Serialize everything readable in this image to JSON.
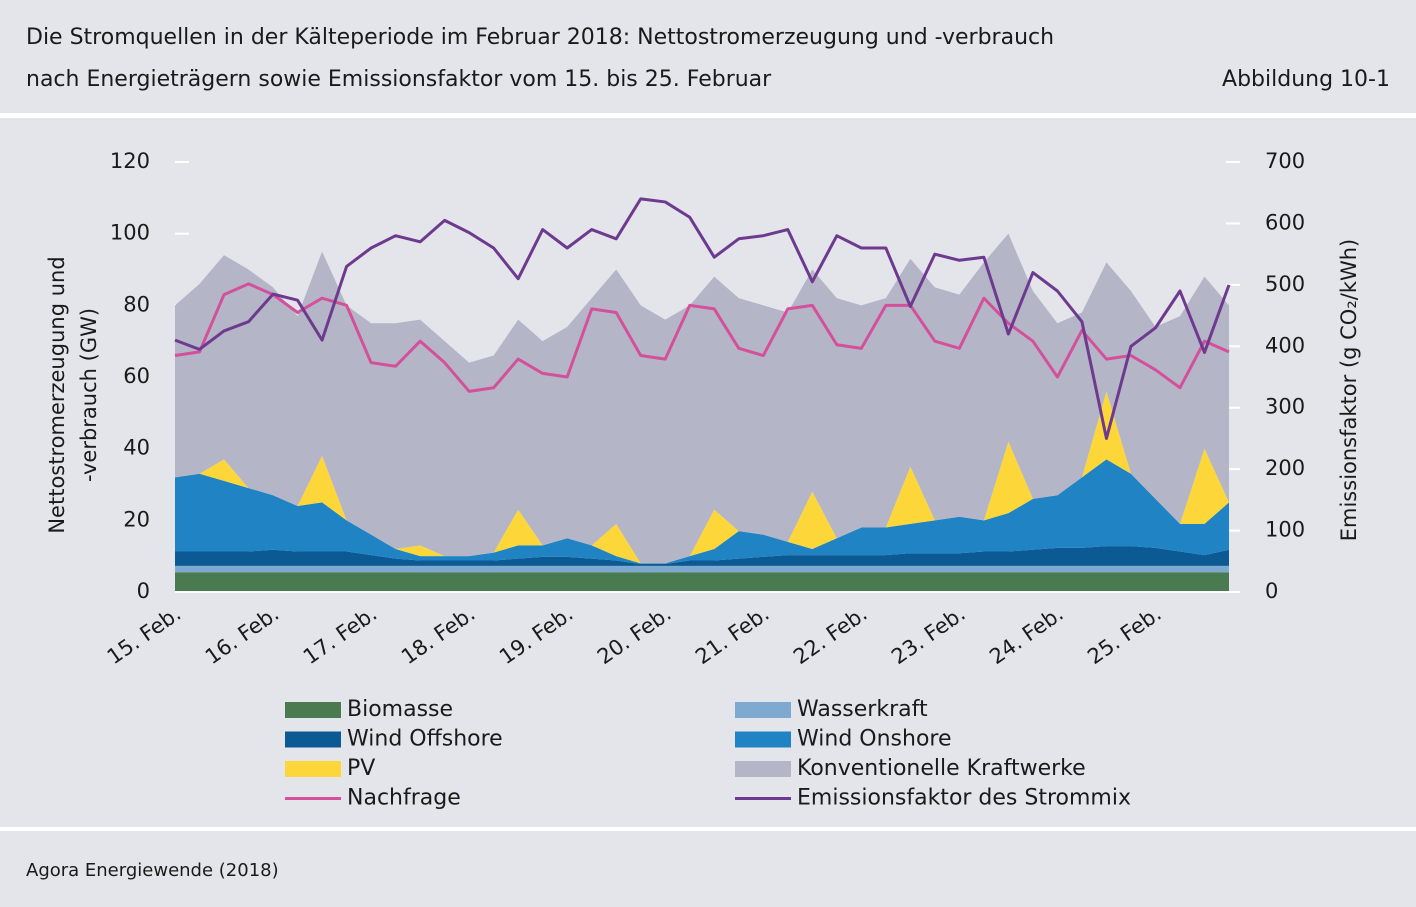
{
  "chart_data": {
    "type": "stacked_area",
    "title": "Die Stromquellen in der Kälteperiode im Februar 2018: Nettostromerzeugung und -verbrauch",
    "subtitle": "nach Energieträgern sowie Emissionsfaktor vom 15. bis 25. Februar",
    "figure_label": "Abbildung 10-1",
    "source": "Agora Energiewende (2018)",
    "ylabel": [
      "Nettostromerzeugung und",
      "-verbrauch (GW)"
    ],
    "y2label": "Emissionsfaktor (g CO₂/kWh)",
    "categories": [
      "15. Feb.",
      null,
      null,
      null,
      "16. Feb.",
      null,
      null,
      null,
      "17. Feb.",
      null,
      null,
      null,
      "18. Feb.",
      null,
      null,
      null,
      "19. Feb.",
      null,
      null,
      null,
      "20. Feb.",
      null,
      null,
      null,
      "21. Feb.",
      null,
      null,
      null,
      "22. Feb.",
      null,
      null,
      null,
      "23. Feb.",
      null,
      null,
      null,
      "24. Feb.",
      null,
      null,
      null,
      "25. Feb.",
      null,
      null,
      null
    ],
    "ylim": [
      0,
      120
    ],
    "yticks": [
      0,
      20,
      40,
      60,
      80,
      100,
      120
    ],
    "y2lim": [
      0,
      700
    ],
    "y2ticks": [
      0,
      100,
      200,
      300,
      400,
      500,
      600,
      700
    ],
    "series": [
      {
        "name": "Biomasse",
        "color": "#4a7a50",
        "values": [
          5.5,
          5.5,
          5.5,
          5.5,
          5.5,
          5.5,
          5.5,
          5.5,
          5.5,
          5.5,
          5.5,
          5.5,
          5.5,
          5.5,
          5.5,
          5.5,
          5.5,
          5.5,
          5.5,
          5.5,
          5.5,
          5.5,
          5.5,
          5.5,
          5.5,
          5.5,
          5.5,
          5.5,
          5.5,
          5.5,
          5.5,
          5.5,
          5.5,
          5.5,
          5.5,
          5.5,
          5.5,
          5.5,
          5.5,
          5.5,
          5.5,
          5.5,
          5.5,
          5.5
        ]
      },
      {
        "name": "Wasserkraft",
        "color": "#7eaad2",
        "values": [
          1.8,
          1.8,
          1.8,
          1.8,
          1.8,
          1.8,
          1.8,
          1.8,
          1.8,
          1.8,
          1.8,
          1.8,
          1.8,
          1.8,
          1.8,
          1.8,
          1.8,
          1.8,
          1.8,
          1.8,
          1.8,
          1.8,
          1.8,
          1.8,
          1.8,
          1.8,
          1.8,
          1.8,
          1.8,
          1.8,
          1.8,
          1.8,
          1.8,
          1.8,
          1.8,
          1.8,
          1.8,
          1.8,
          1.8,
          1.8,
          1.8,
          1.8,
          1.8,
          1.8
        ]
      },
      {
        "name": "Wind Offshore",
        "color": "#0c5a94",
        "values": [
          4,
          4,
          4,
          4,
          4.5,
          4,
          4,
          4,
          3,
          2,
          1.5,
          1.5,
          1.5,
          1.5,
          2,
          2.5,
          2.5,
          2,
          1.5,
          0.5,
          0.5,
          1.5,
          1.5,
          2,
          2.5,
          3,
          3,
          3,
          3,
          3,
          3.5,
          3.5,
          3.5,
          4,
          4,
          4.5,
          5,
          5,
          5.5,
          5.5,
          5,
          4,
          3,
          4.5
        ]
      },
      {
        "name": "Wind Onshore",
        "color": "#2083c3",
        "values": [
          20.7,
          21.7,
          19.7,
          17.7,
          15.2,
          12.7,
          13.7,
          8.7,
          5.7,
          2.7,
          1.2,
          1.2,
          1.2,
          2.2,
          3.7,
          3.2,
          5.2,
          3.7,
          1.2,
          0.2,
          0.2,
          1.2,
          3.2,
          7.7,
          6.2,
          3.7,
          1.7,
          4.7,
          7.7,
          7.7,
          8.2,
          9.2,
          10.2,
          8.7,
          10.7,
          14.2,
          14.7,
          19.7,
          24.2,
          20.2,
          13.7,
          7.7,
          8.7,
          13.2
        ]
      },
      {
        "name": "PV",
        "color": "#fdd73a",
        "values": [
          0,
          0,
          6,
          0,
          0,
          0,
          13,
          0,
          0,
          0,
          3,
          0,
          0,
          0,
          10,
          0,
          0,
          0,
          9,
          0,
          0,
          0,
          11,
          0,
          0,
          0,
          16,
          0,
          0,
          0,
          16,
          0,
          0,
          0,
          20,
          0,
          0,
          0,
          19,
          0,
          0,
          0,
          21,
          0
        ]
      },
      {
        "name": "Konventionelle Kraftwerke",
        "color": "#b4b6c7",
        "values": [
          48,
          53,
          57,
          61,
          58,
          53,
          57,
          60,
          59,
          63,
          63,
          60,
          54,
          55,
          53,
          57,
          59,
          69,
          71,
          72,
          68,
          70,
          65,
          65,
          64,
          64,
          62,
          67,
          62,
          64,
          58,
          65,
          62,
          72,
          58,
          58,
          48,
          46,
          36,
          51,
          48,
          58,
          48,
          55
        ]
      }
    ],
    "lines": [
      {
        "name": "Nachfrage",
        "color": "#d4509b",
        "values": [
          66,
          67,
          83,
          86,
          83,
          78,
          82,
          80,
          64,
          63,
          70,
          64,
          56,
          57,
          65,
          61,
          60,
          79,
          78,
          66,
          65,
          80,
          79,
          68,
          66,
          79,
          80,
          69,
          68,
          80,
          80,
          70,
          68,
          82,
          75,
          70,
          60,
          73,
          65,
          66,
          62,
          57,
          70,
          67
        ]
      },
      {
        "name": "Emissionsfaktor des Strommix",
        "color": "#6e3a8f",
        "axis": "y2",
        "values": [
          410,
          395,
          425,
          440,
          485,
          475,
          410,
          530,
          560,
          580,
          570,
          605,
          585,
          560,
          510,
          590,
          560,
          590,
          575,
          640,
          635,
          610,
          545,
          575,
          580,
          590,
          505,
          580,
          560,
          560,
          465,
          550,
          540,
          545,
          420,
          520,
          490,
          440,
          250,
          400,
          430,
          490,
          390,
          500
        ]
      }
    ]
  }
}
